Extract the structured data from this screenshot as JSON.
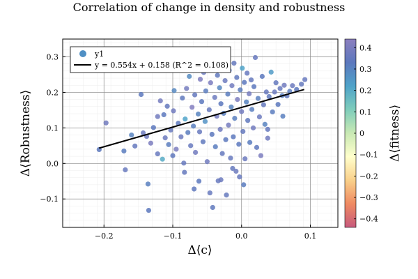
{
  "chart_data": {
    "type": "scatter",
    "title": "Correlation of change in density and robustness",
    "xlabel": "Δ⟨c⟩",
    "ylabel": "Δ⟨Robustness⟩",
    "colorbar_label": "Δ⟨fitness⟩",
    "xlim": [
      -0.26,
      0.14
    ],
    "ylim": [
      -0.18,
      0.35
    ],
    "clim": [
      -0.44,
      0.44
    ],
    "x_ticks": [
      -0.2,
      -0.1,
      0.0,
      0.1
    ],
    "x_tick_labels": [
      "−0.2",
      "−0.1",
      "0.0",
      "0.1"
    ],
    "y_ticks": [
      -0.1,
      0.0,
      0.1,
      0.2,
      0.3
    ],
    "y_tick_labels": [
      "−0.1",
      "0.0",
      "0.1",
      "0.2",
      "0.3"
    ],
    "c_ticks": [
      -0.4,
      -0.3,
      -0.2,
      -0.1,
      0,
      0.1,
      0.2,
      0.3,
      0.4
    ],
    "c_tick_labels": [
      "−0.4",
      "−0.3",
      "−0.2",
      "−0.1",
      "0",
      "0.1",
      "0.2",
      "0.3",
      "0.4"
    ],
    "grid": true,
    "legend_position": "top-left",
    "colormap": [
      "#c75a7d",
      "#ef8a62",
      "#f9d08a",
      "#ffffcc",
      "#c9e9b4",
      "#7fcdbb",
      "#4fa3c9",
      "#5c78bd",
      "#8c7fbf"
    ],
    "series": [
      {
        "name": "y1",
        "kind": "scatter",
        "color": "#4f8fc4",
        "points": [
          {
            "x": -0.207,
            "y": 0.039,
            "c": 0.33
          },
          {
            "x": -0.197,
            "y": 0.114,
            "c": 0.38
          },
          {
            "x": -0.171,
            "y": 0.035,
            "c": 0.32
          },
          {
            "x": -0.169,
            "y": -0.018,
            "c": 0.36
          },
          {
            "x": -0.16,
            "y": 0.08,
            "c": 0.3
          },
          {
            "x": -0.155,
            "y": 0.049,
            "c": 0.35
          },
          {
            "x": -0.146,
            "y": 0.194,
            "c": 0.33
          },
          {
            "x": -0.143,
            "y": 0.086,
            "c": 0.37
          },
          {
            "x": -0.138,
            "y": 0.076,
            "c": 0.38
          },
          {
            "x": -0.136,
            "y": -0.058,
            "c": 0.31
          },
          {
            "x": -0.135,
            "y": -0.132,
            "c": 0.33
          },
          {
            "x": -0.132,
            "y": 0.057,
            "c": 0.4
          },
          {
            "x": -0.128,
            "y": 0.101,
            "c": 0.33
          },
          {
            "x": -0.122,
            "y": 0.027,
            "c": 0.36
          },
          {
            "x": -0.118,
            "y": 0.176,
            "c": 0.39
          },
          {
            "x": -0.115,
            "y": 0.012,
            "c": 0.2
          },
          {
            "x": -0.113,
            "y": 0.137,
            "c": 0.33
          },
          {
            "x": -0.111,
            "y": 0.072,
            "c": 0.37
          },
          {
            "x": -0.108,
            "y": 0.161,
            "c": 0.35
          },
          {
            "x": -0.106,
            "y": 0.053,
            "c": 0.32
          },
          {
            "x": -0.103,
            "y": 0.094,
            "c": 0.36
          },
          {
            "x": -0.099,
            "y": 0.148,
            "c": 0.38
          },
          {
            "x": -0.098,
            "y": 0.205,
            "c": 0.29
          },
          {
            "x": -0.095,
            "y": 0.04,
            "c": 0.4
          },
          {
            "x": -0.092,
            "y": 0.113,
            "c": 0.33
          },
          {
            "x": -0.09,
            "y": 0.265,
            "c": 0.3
          },
          {
            "x": -0.088,
            "y": 0.075,
            "c": 0.37
          },
          {
            "x": -0.086,
            "y": 0.184,
            "c": 0.34
          },
          {
            "x": -0.083,
            "y": -0.025,
            "c": 0.35
          },
          {
            "x": -0.082,
            "y": 0.125,
            "c": 0.22
          },
          {
            "x": -0.08,
            "y": 0.211,
            "c": 0.39
          },
          {
            "x": -0.078,
            "y": 0.087,
            "c": 0.32
          },
          {
            "x": -0.076,
            "y": 0.245,
            "c": 0.28
          },
          {
            "x": -0.074,
            "y": 0.05,
            "c": 0.36
          },
          {
            "x": -0.072,
            "y": 0.158,
            "c": 0.42
          },
          {
            "x": -0.07,
            "y": 0.105,
            "c": 0.31
          },
          {
            "x": -0.068,
            "y": 0.193,
            "c": 0.35
          },
          {
            "x": -0.067,
            "y": 0.031,
            "c": 0.38
          },
          {
            "x": -0.065,
            "y": 0.276,
            "c": 0.33
          },
          {
            "x": -0.063,
            "y": 0.139,
            "c": 0.3
          },
          {
            "x": -0.061,
            "y": 0.089,
            "c": 0.36
          },
          {
            "x": -0.06,
            "y": 0.237,
            "c": 0.41
          },
          {
            "x": -0.058,
            "y": 0.174,
            "c": 0.33
          },
          {
            "x": -0.056,
            "y": 0.061,
            "c": 0.34
          },
          {
            "x": -0.055,
            "y": 0.256,
            "c": 0.37
          },
          {
            "x": -0.053,
            "y": 0.118,
            "c": 0.26
          },
          {
            "x": -0.052,
            "y": 0.204,
            "c": 0.32
          },
          {
            "x": -0.05,
            "y": 0.005,
            "c": 0.38
          },
          {
            "x": -0.049,
            "y": 0.297,
            "c": 0.31
          },
          {
            "x": -0.047,
            "y": 0.151,
            "c": 0.35
          },
          {
            "x": -0.046,
            "y": -0.083,
            "c": 0.36
          },
          {
            "x": -0.045,
            "y": 0.227,
            "c": 0.4
          },
          {
            "x": -0.043,
            "y": 0.082,
            "c": 0.33
          },
          {
            "x": -0.042,
            "y": -0.124,
            "c": 0.34
          },
          {
            "x": -0.041,
            "y": 0.269,
            "c": 0.3
          },
          {
            "x": -0.039,
            "y": 0.186,
            "c": 0.37
          },
          {
            "x": -0.038,
            "y": 0.047,
            "c": 0.32
          },
          {
            "x": -0.036,
            "y": 0.133,
            "c": 0.39
          },
          {
            "x": -0.035,
            "y": 0.248,
            "c": 0.34
          },
          {
            "x": -0.034,
            "y": -0.049,
            "c": 0.36
          },
          {
            "x": -0.032,
            "y": 0.213,
            "c": 0.29
          },
          {
            "x": -0.031,
            "y": 0.096,
            "c": 0.38
          },
          {
            "x": -0.03,
            "y": 0.168,
            "c": 0.33
          },
          {
            "x": -0.028,
            "y": 0.028,
            "c": 0.35
          },
          {
            "x": -0.027,
            "y": 0.289,
            "c": 0.42
          },
          {
            "x": -0.026,
            "y": 0.141,
            "c": 0.31
          },
          {
            "x": -0.024,
            "y": 0.233,
            "c": 0.37
          },
          {
            "x": -0.023,
            "y": 0.067,
            "c": 0.33
          },
          {
            "x": -0.022,
            "y": -0.089,
            "c": 0.35
          },
          {
            "x": -0.02,
            "y": 0.195,
            "c": 0.32
          },
          {
            "x": -0.019,
            "y": 0.108,
            "c": 0.39
          },
          {
            "x": -0.018,
            "y": 0.262,
            "c": 0.34
          },
          {
            "x": -0.016,
            "y": 0.015,
            "c": 0.36
          },
          {
            "x": -0.015,
            "y": 0.159,
            "c": 0.3
          },
          {
            "x": -0.014,
            "y": 0.219,
            "c": 0.38
          },
          {
            "x": -0.012,
            "y": 0.075,
            "c": 0.33
          },
          {
            "x": -0.011,
            "y": 0.282,
            "c": 0.35
          },
          {
            "x": -0.01,
            "y": 0.127,
            "c": 0.31
          },
          {
            "x": -0.008,
            "y": -0.022,
            "c": 0.37
          },
          {
            "x": -0.007,
            "y": 0.242,
            "c": 0.34
          },
          {
            "x": -0.006,
            "y": 0.18,
            "c": 0.4
          },
          {
            "x": -0.004,
            "y": 0.054,
            "c": 0.33
          },
          {
            "x": -0.003,
            "y": -0.038,
            "c": 0.36
          },
          {
            "x": -0.002,
            "y": 0.207,
            "c": 0.32
          },
          {
            "x": 0.0,
            "y": 0.146,
            "c": 0.38
          },
          {
            "x": 0.001,
            "y": 0.268,
            "c": 0.22
          },
          {
            "x": 0.002,
            "y": 0.09,
            "c": 0.35
          },
          {
            "x": 0.004,
            "y": 0.228,
            "c": 0.33
          },
          {
            "x": 0.005,
            "y": 0.013,
            "c": 0.37
          },
          {
            "x": 0.007,
            "y": 0.173,
            "c": 0.3
          },
          {
            "x": 0.008,
            "y": 0.254,
            "c": 0.36
          },
          {
            "x": 0.009,
            "y": 0.121,
            "c": 0.34
          },
          {
            "x": 0.011,
            "y": 0.196,
            "c": 0.39
          },
          {
            "x": 0.012,
            "y": 0.059,
            "c": 0.32
          },
          {
            "x": 0.014,
            "y": 0.235,
            "c": 0.35
          },
          {
            "x": 0.015,
            "y": 0.152,
            "c": 0.31
          },
          {
            "x": 0.017,
            "y": 0.1,
            "c": 0.38
          },
          {
            "x": 0.018,
            "y": 0.216,
            "c": 0.33
          },
          {
            "x": 0.02,
            "y": 0.298,
            "c": 0.36
          },
          {
            "x": 0.022,
            "y": 0.045,
            "c": 0.34
          },
          {
            "x": 0.024,
            "y": 0.183,
            "c": 0.31
          },
          {
            "x": 0.026,
            "y": 0.131,
            "c": 0.37
          },
          {
            "x": 0.028,
            "y": 0.022,
            "c": 0.4
          },
          {
            "x": 0.03,
            "y": 0.245,
            "c": 0.33
          },
          {
            "x": 0.032,
            "y": 0.165,
            "c": 0.35
          },
          {
            "x": 0.034,
            "y": 0.11,
            "c": 0.3
          },
          {
            "x": 0.036,
            "y": 0.201,
            "c": 0.36
          },
          {
            "x": 0.038,
            "y": 0.071,
            "c": 0.38
          },
          {
            "x": 0.04,
            "y": 0.188,
            "c": 0.34
          },
          {
            "x": 0.043,
            "y": 0.257,
            "c": 0.24
          },
          {
            "x": 0.045,
            "y": 0.145,
            "c": 0.32
          },
          {
            "x": 0.048,
            "y": 0.201,
            "c": 0.37
          },
          {
            "x": 0.05,
            "y": 0.227,
            "c": 0.35
          },
          {
            "x": 0.053,
            "y": 0.166,
            "c": 0.33
          },
          {
            "x": 0.056,
            "y": 0.211,
            "c": 0.36
          },
          {
            "x": 0.059,
            "y": 0.191,
            "c": 0.31
          },
          {
            "x": 0.062,
            "y": 0.22,
            "c": 0.38
          },
          {
            "x": 0.066,
            "y": 0.19,
            "c": 0.34
          },
          {
            "x": 0.07,
            "y": 0.203,
            "c": 0.32
          },
          {
            "x": 0.074,
            "y": 0.219,
            "c": 0.37
          },
          {
            "x": 0.08,
            "y": 0.208,
            "c": 0.33
          },
          {
            "x": 0.087,
            "y": 0.223,
            "c": 0.35
          },
          {
            "x": 0.092,
            "y": 0.236,
            "c": 0.36
          },
          {
            "x": -0.069,
            "y": -0.072,
            "c": 0.34
          },
          {
            "x": -0.062,
            "y": -0.05,
            "c": 0.33
          },
          {
            "x": -0.03,
            "y": -0.046,
            "c": 0.37
          },
          {
            "x": -0.013,
            "y": -0.014,
            "c": 0.35
          },
          {
            "x": 0.003,
            "y": -0.06,
            "c": 0.32
          },
          {
            "x": -0.084,
            "y": 0.001,
            "c": 0.36
          },
          {
            "x": -0.122,
            "y": 0.132,
            "c": 0.38
          },
          {
            "x": -0.1,
            "y": 0.022,
            "c": 0.34
          },
          {
            "x": 0.06,
            "y": 0.133,
            "c": 0.31
          },
          {
            "x": 0.038,
            "y": 0.096,
            "c": 0.35
          }
        ]
      },
      {
        "name": "y = 0.554x + 0.158 (R^2 = 0.108)",
        "kind": "line",
        "color": "#000000",
        "x": [
          -0.207,
          0.091
        ],
        "y": [
          0.043,
          0.208
        ]
      }
    ]
  }
}
